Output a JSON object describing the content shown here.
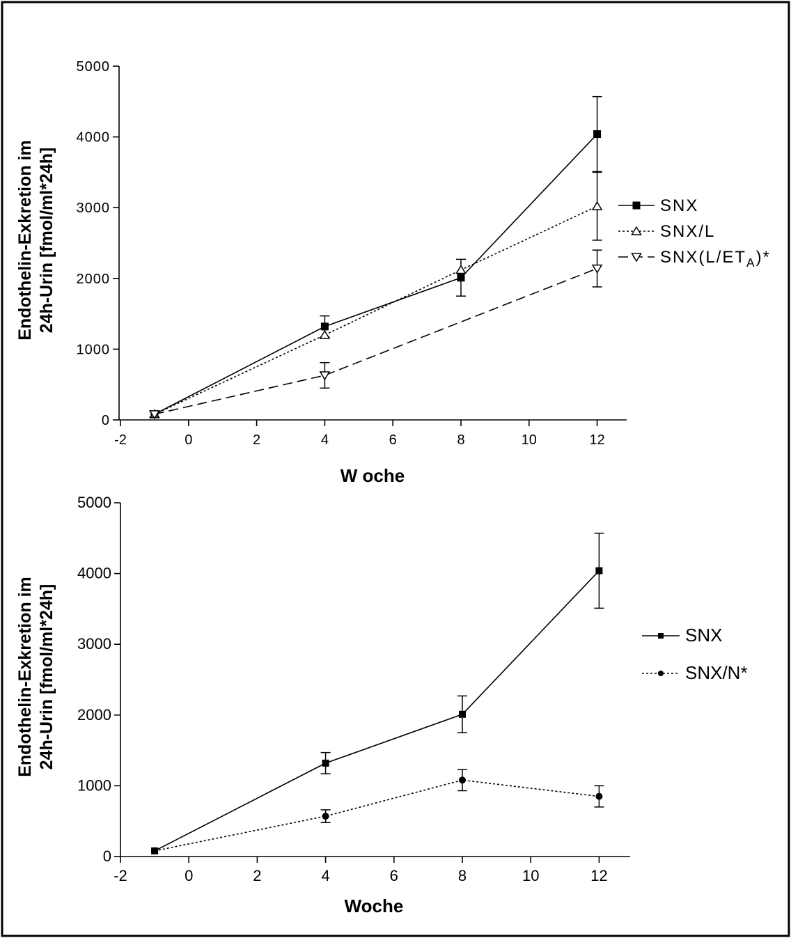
{
  "chart_data": [
    {
      "type": "line",
      "xlabel": "W oche",
      "ylabel_line1": "Endothelin-Exkretion im",
      "ylabel_line2": "24h-Urin [fmol/ml*24h]",
      "xlim": [
        -2,
        13
      ],
      "ylim": [
        0,
        5000
      ],
      "xticks": [
        -2,
        0,
        2,
        4,
        6,
        8,
        10,
        12
      ],
      "yticks": [
        0,
        1000,
        2000,
        3000,
        4000,
        5000
      ],
      "legend_position": "right",
      "series": [
        {
          "name": "SNX",
          "marker": "square-filled",
          "line": "solid",
          "x": [
            -1,
            4,
            8,
            12
          ],
          "y": [
            80,
            1320,
            2010,
            4040
          ],
          "err": [
            40,
            150,
            260,
            530
          ]
        },
        {
          "name": "SNX/L",
          "marker": "triangle-up-open",
          "line": "dotted",
          "x": [
            -1,
            4,
            8,
            12
          ],
          "y": [
            80,
            1200,
            2120,
            3020
          ],
          "err": [
            40,
            0,
            0,
            480
          ]
        },
        {
          "name": "SNX(L/ET",
          "name_sub": "A",
          "name_suffix": ")*",
          "marker": "triangle-down-open",
          "line": "dashed",
          "x": [
            -1,
            4,
            12
          ],
          "y": [
            80,
            630,
            2140
          ],
          "err": [
            40,
            180,
            260
          ]
        }
      ]
    },
    {
      "type": "line",
      "xlabel": "Woche",
      "ylabel_line1": "Endothelin-Exkretion im",
      "ylabel_line2": "24h-Urin [fmol/ml*24h]",
      "xlim": [
        -2,
        13
      ],
      "ylim": [
        0,
        5000
      ],
      "xticks": [
        -2,
        0,
        2,
        4,
        6,
        8,
        10,
        12
      ],
      "yticks": [
        0,
        1000,
        2000,
        3000,
        4000,
        5000
      ],
      "legend_position": "right",
      "series": [
        {
          "name": "SNX",
          "marker": "square-filled",
          "line": "solid",
          "x": [
            -1,
            4,
            8,
            12
          ],
          "y": [
            80,
            1320,
            2010,
            4040
          ],
          "err": [
            0,
            150,
            260,
            530
          ]
        },
        {
          "name": "SNX/N*",
          "marker": "circle-filled",
          "line": "dotted",
          "x": [
            -1,
            4,
            8,
            12
          ],
          "y": [
            80,
            570,
            1080,
            850
          ],
          "err": [
            0,
            90,
            150,
            150
          ]
        }
      ]
    }
  ],
  "colors": {
    "ink": "#000000",
    "background": "#ffffff"
  }
}
